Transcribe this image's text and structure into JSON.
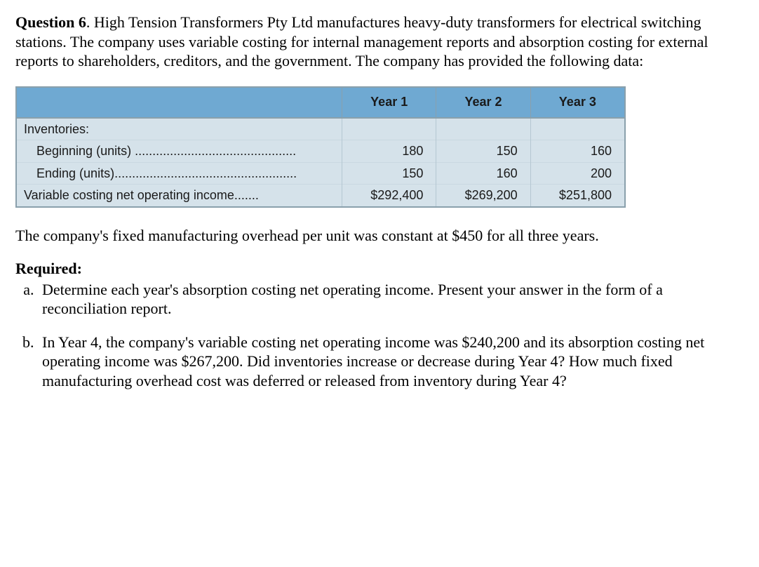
{
  "question": {
    "label": "Question 6",
    "text": ". High Tension Transformers Pty Ltd manufactures heavy-duty transformers for electrical switching stations. The company uses variable costing for internal management reports and absorption costing for external reports to shareholders, creditors, and the government. The company has provided the following data:"
  },
  "table": {
    "columns": [
      "Year 1",
      "Year 2",
      "Year 3"
    ],
    "header_bg": "#6fa9d2",
    "body_bg": "#d5e2ea",
    "border_color": "#8aa0ac",
    "font_family": "Arial",
    "header_fontsize": 18,
    "body_fontsize": 18,
    "rows": [
      {
        "label": "Inventories:",
        "indent": 0,
        "dots": false,
        "values": [
          "",
          "",
          ""
        ]
      },
      {
        "label": "Beginning (units)",
        "indent": 1,
        "dots": true,
        "values": [
          "180",
          "150",
          "160"
        ]
      },
      {
        "label": "Ending (units)",
        "indent": 1,
        "dots": true,
        "values": [
          "150",
          "160",
          "200"
        ]
      },
      {
        "label": "Variable costing net operating income",
        "indent": 0,
        "dots": true,
        "values": [
          "$292,400",
          "$269,200",
          "$251,800"
        ]
      }
    ]
  },
  "after_table": "The company's fixed manufacturing overhead per unit was constant at $450 for all three years.",
  "required": {
    "label": "Required:",
    "items": [
      "Determine each year's absorption costing net operating income. Present your answer in the form of a reconciliation report.",
      "In Year 4, the company's variable costing net operating income was $240,200 and its absorption costing net operating income was $267,200. Did inventories increase or decrease during Year 4? How much fixed manufacturing overhead cost was deferred or released from inventory during Year 4?"
    ]
  }
}
